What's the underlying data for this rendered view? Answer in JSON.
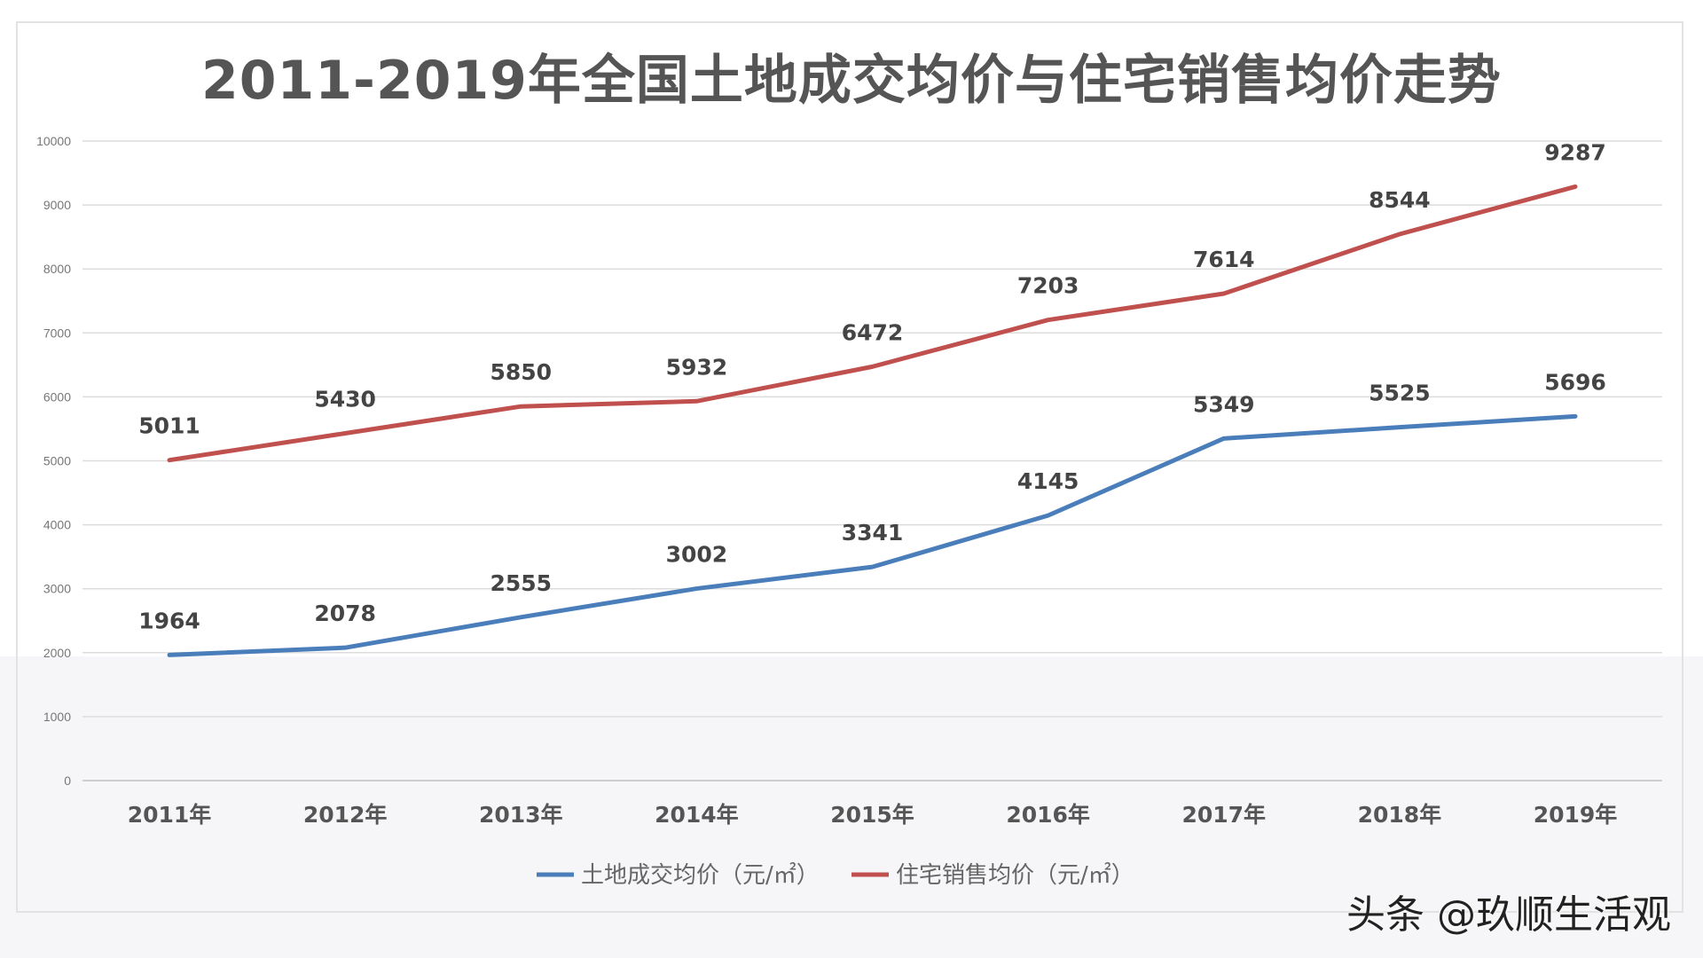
{
  "chart_data": {
    "type": "line",
    "title": "2011-2019年全国土地成交均价与住宅销售均价走势",
    "categories": [
      "2011年",
      "2012年",
      "2013年",
      "2014年",
      "2015年",
      "2016年",
      "2017年",
      "2018年",
      "2019年"
    ],
    "yticks": [
      "0",
      "1000",
      "2000",
      "3000",
      "4000",
      "5000",
      "6000",
      "7000",
      "8000",
      "9000",
      "10000"
    ],
    "ylim": [
      0,
      10000
    ],
    "grid": true,
    "legend_position": "bottom",
    "series": [
      {
        "name": "土地成交均价（元/㎡）",
        "color": "#4a7ebb",
        "values": [
          1964,
          2078,
          2555,
          3002,
          3341,
          4145,
          5349,
          5525,
          5696
        ]
      },
      {
        "name": "住宅销售均价（元/㎡）",
        "color": "#c0504d",
        "values": [
          5011,
          5430,
          5850,
          5932,
          6472,
          7203,
          7614,
          8544,
          9287
        ]
      }
    ]
  },
  "watermark": "头条 @玖顺生活观"
}
